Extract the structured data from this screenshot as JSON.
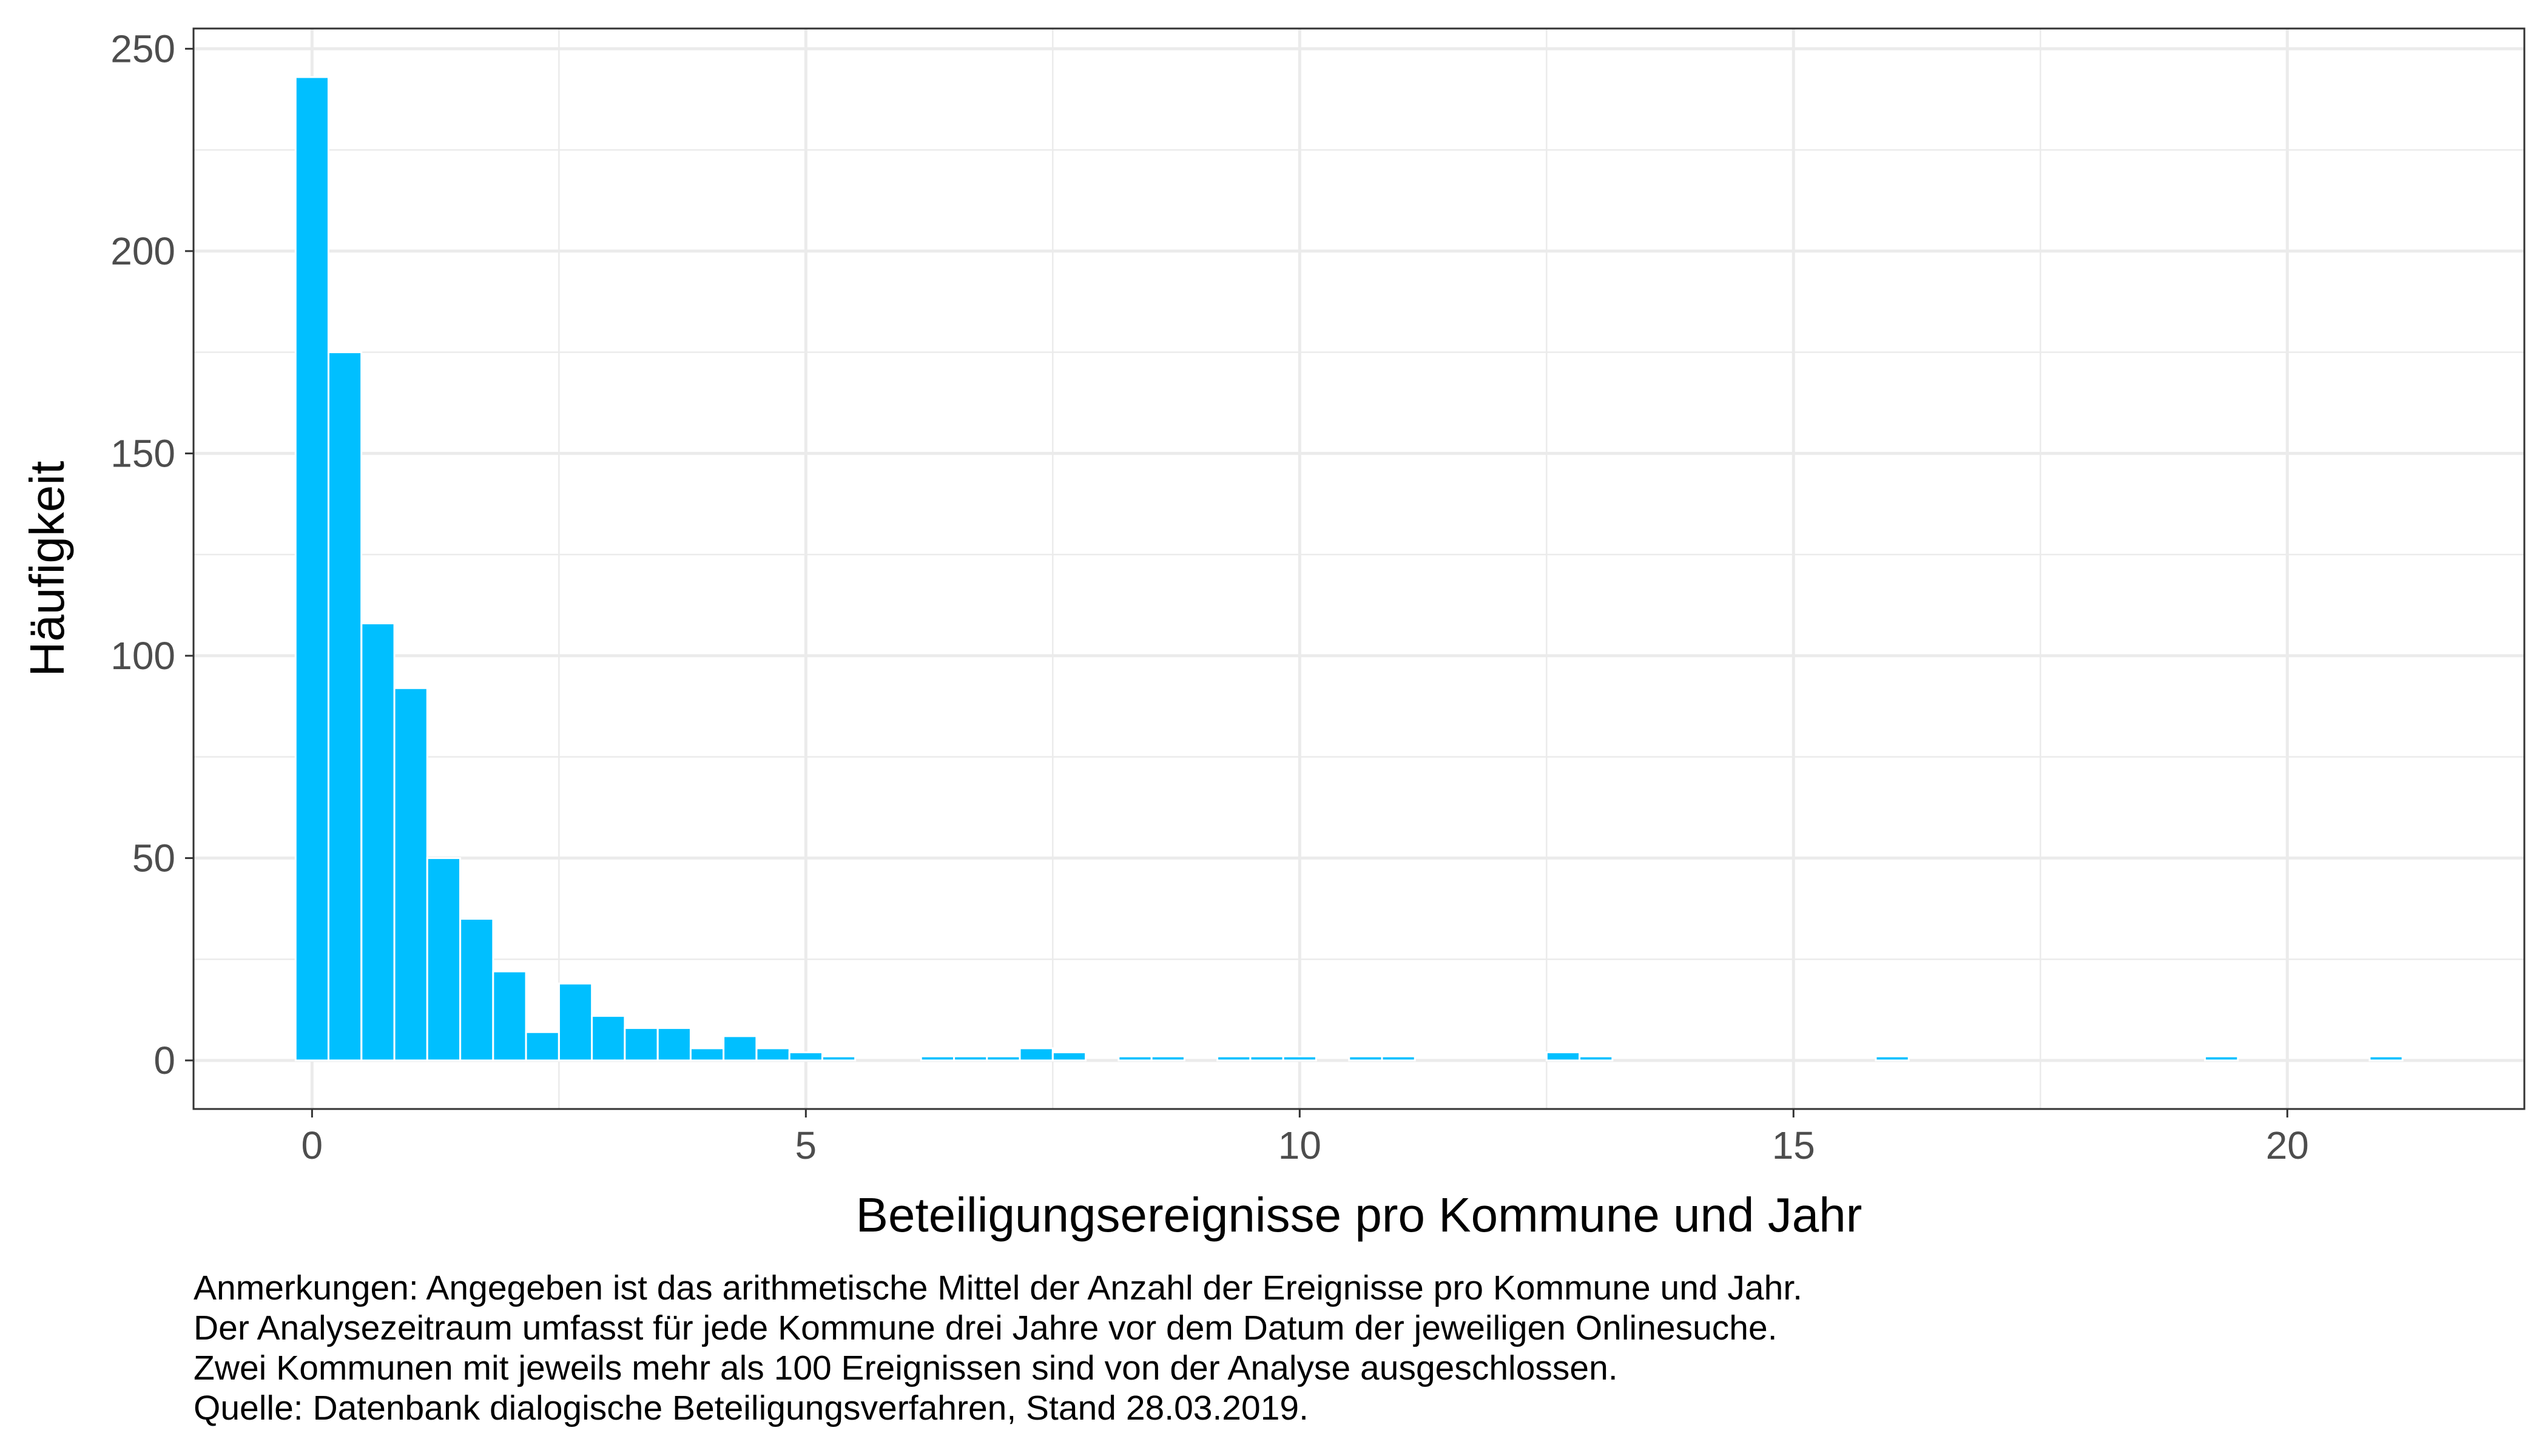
{
  "chart_data": {
    "type": "bar",
    "title": "",
    "xlabel": "Beteiligungsereignisse pro Kommune und Jahr",
    "ylabel": "Häufigkeit",
    "xlim": [
      -1.2,
      22.4
    ],
    "ylim": [
      -12,
      255
    ],
    "xticks": [
      0,
      5,
      10,
      15,
      20
    ],
    "yticks": [
      0,
      50,
      100,
      150,
      200,
      250
    ],
    "bin_width": 0.333,
    "grid": true,
    "bar_color": "#00BFFF",
    "bins": [
      {
        "x": 0.0,
        "count": 243
      },
      {
        "x": 0.333,
        "count": 175
      },
      {
        "x": 0.667,
        "count": 108
      },
      {
        "x": 1.0,
        "count": 92
      },
      {
        "x": 1.333,
        "count": 50
      },
      {
        "x": 1.667,
        "count": 35
      },
      {
        "x": 2.0,
        "count": 22
      },
      {
        "x": 2.333,
        "count": 7
      },
      {
        "x": 2.667,
        "count": 19
      },
      {
        "x": 3.0,
        "count": 11
      },
      {
        "x": 3.333,
        "count": 8
      },
      {
        "x": 3.667,
        "count": 8
      },
      {
        "x": 4.0,
        "count": 3
      },
      {
        "x": 4.333,
        "count": 6
      },
      {
        "x": 4.667,
        "count": 3
      },
      {
        "x": 5.0,
        "count": 2
      },
      {
        "x": 5.333,
        "count": 1
      },
      {
        "x": 6.333,
        "count": 1
      },
      {
        "x": 6.667,
        "count": 1
      },
      {
        "x": 7.0,
        "count": 1
      },
      {
        "x": 7.333,
        "count": 3
      },
      {
        "x": 7.667,
        "count": 2
      },
      {
        "x": 8.333,
        "count": 1
      },
      {
        "x": 8.667,
        "count": 1
      },
      {
        "x": 9.333,
        "count": 1
      },
      {
        "x": 9.667,
        "count": 1
      },
      {
        "x": 10.0,
        "count": 1
      },
      {
        "x": 10.667,
        "count": 1
      },
      {
        "x": 11.0,
        "count": 1
      },
      {
        "x": 12.667,
        "count": 2
      },
      {
        "x": 13.0,
        "count": 1
      },
      {
        "x": 16.0,
        "count": 1
      },
      {
        "x": 19.333,
        "count": 1
      },
      {
        "x": 21.0,
        "count": 1
      }
    ]
  },
  "notes": [
    "Anmerkungen: Angegeben ist das arithmetische Mittel der Anzahl der Ereignisse pro Kommune und Jahr.",
    "Der Analysezeitraum umfasst für jede Kommune drei Jahre vor dem Datum der jeweiligen Onlinesuche.",
    "Zwei Kommunen mit jeweils mehr als 100 Ereignissen sind von der Analyse ausgeschlossen.",
    "Quelle: Datenbank dialogische Beteiligungsverfahren, Stand 28.03.2019."
  ]
}
